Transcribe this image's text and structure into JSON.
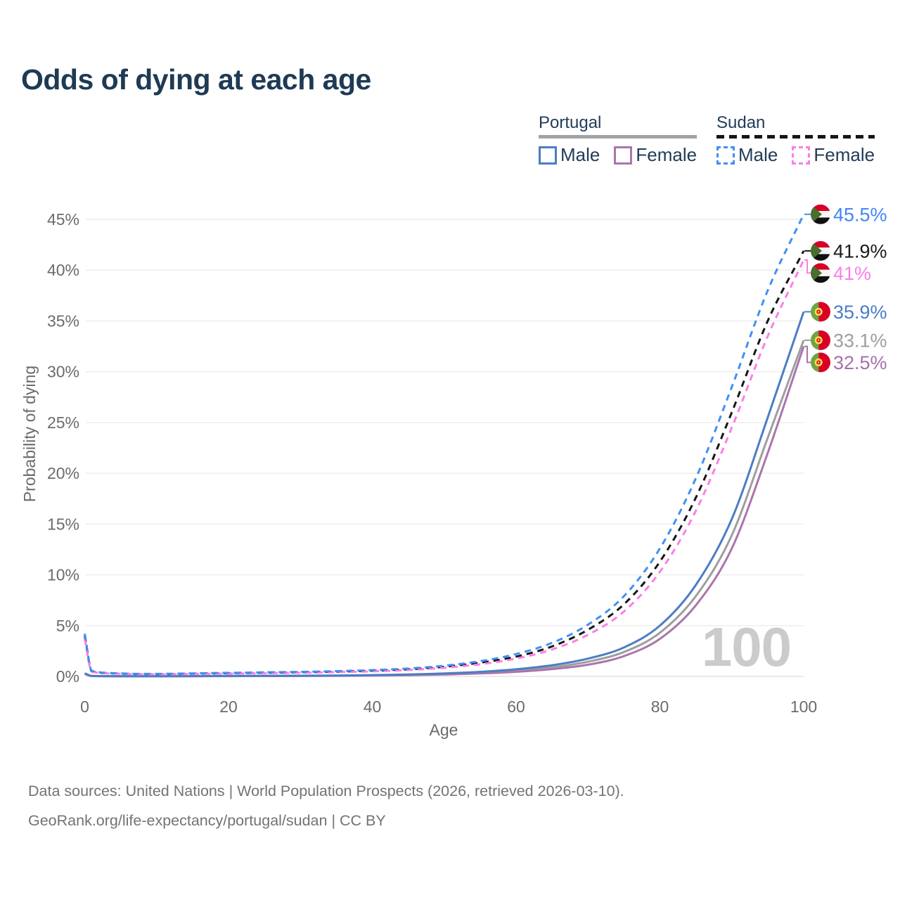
{
  "header": {
    "title": "Odds of dying at each age"
  },
  "legend": {
    "groups": [
      {
        "label": "Portugal",
        "line_style": "solid",
        "items": [
          {
            "label": "Male",
            "series": "portugal-male"
          },
          {
            "label": "Female",
            "series": "portugal-female"
          }
        ]
      },
      {
        "label": "Sudan",
        "line_style": "dashed",
        "items": [
          {
            "label": "Male",
            "series": "sudan-male"
          },
          {
            "label": "Female",
            "series": "sudan-female"
          }
        ]
      }
    ]
  },
  "footer": {
    "line1": "Data sources: United Nations | World Population Prospects (2026, retrieved 2026-03-10).",
    "line2": "GeoRank.org/life-expectancy/portugal/sudan | CC BY"
  },
  "chart_data": {
    "type": "line",
    "title": "Odds of dying at each age",
    "xlabel": "Age",
    "ylabel": "Probability of dying",
    "xlim": [
      0,
      100
    ],
    "ylim_percent": [
      0,
      47
    ],
    "grid": "horizontal",
    "x_ticks": [
      0,
      20,
      40,
      60,
      80,
      100
    ],
    "y_ticks": [
      "0%",
      "5%",
      "10%",
      "15%",
      "20%",
      "25%",
      "30%",
      "35%",
      "40%",
      "45%"
    ],
    "watermark": "100",
    "ages": [
      0,
      1,
      5,
      10,
      15,
      20,
      25,
      30,
      35,
      40,
      45,
      50,
      55,
      60,
      65,
      70,
      75,
      80,
      85,
      90,
      95,
      100
    ],
    "series": [
      {
        "id": "sudan-male",
        "country": "Sudan",
        "sex": "Male",
        "line_style": "dashed",
        "color": "#4190f2",
        "label_color": "#4285f4",
        "flag": "sudan",
        "end_label": "45.5%",
        "values_percent": [
          4.2,
          0.55,
          0.3,
          0.25,
          0.3,
          0.35,
          0.4,
          0.45,
          0.52,
          0.62,
          0.78,
          1.05,
          1.5,
          2.2,
          3.3,
          5.1,
          7.9,
          12.6,
          19.5,
          28.5,
          38.0,
          45.5
        ]
      },
      {
        "id": "sudan-total",
        "country": "Sudan",
        "sex": "Both",
        "line_style": "dashed",
        "color": "#161616",
        "label_color": "#1a1a1a",
        "flag": "sudan",
        "end_label": "41.9%",
        "values_percent": [
          4.0,
          0.5,
          0.28,
          0.23,
          0.27,
          0.32,
          0.36,
          0.41,
          0.47,
          0.56,
          0.7,
          0.95,
          1.35,
          1.95,
          2.95,
          4.6,
          7.1,
          11.3,
          17.6,
          26.0,
          35.0,
          41.9
        ]
      },
      {
        "id": "sudan-female",
        "country": "Sudan",
        "sex": "Female",
        "line_style": "dashed",
        "color": "#fb7ee8",
        "label_color": "#fb7ee8",
        "flag": "sudan",
        "end_label": "41%",
        "values_percent": [
          3.7,
          0.45,
          0.26,
          0.21,
          0.24,
          0.28,
          0.32,
          0.36,
          0.42,
          0.5,
          0.63,
          0.85,
          1.2,
          1.75,
          2.65,
          4.1,
          6.4,
          10.3,
          16.3,
          24.5,
          33.5,
          41.0
        ]
      },
      {
        "id": "portugal-male",
        "country": "Portugal",
        "sex": "Male",
        "line_style": "solid",
        "color": "#4d7dc3",
        "label_color": "#4a7cc7",
        "flag": "portugal",
        "end_label": "35.9%",
        "values_percent": [
          0.3,
          0.05,
          0.02,
          0.02,
          0.03,
          0.05,
          0.06,
          0.07,
          0.09,
          0.13,
          0.19,
          0.29,
          0.45,
          0.7,
          1.1,
          1.75,
          2.85,
          5.0,
          9.0,
          15.5,
          25.5,
          35.9
        ]
      },
      {
        "id": "portugal-total",
        "country": "Portugal",
        "sex": "Both",
        "line_style": "solid",
        "color": "#9e9e9e",
        "label_color": "#9e9e9e",
        "flag": "portugal",
        "end_label": "33.1%",
        "values_percent": [
          0.28,
          0.04,
          0.018,
          0.018,
          0.025,
          0.04,
          0.05,
          0.06,
          0.075,
          0.105,
          0.155,
          0.24,
          0.37,
          0.57,
          0.9,
          1.45,
          2.4,
          4.3,
          7.9,
          13.9,
          23.5,
          33.1
        ]
      },
      {
        "id": "portugal-female",
        "country": "Portugal",
        "sex": "Female",
        "line_style": "solid",
        "color": "#ac74ac",
        "label_color": "#a86fa8",
        "flag": "portugal",
        "end_label": "32.5%",
        "values_percent": [
          0.25,
          0.035,
          0.015,
          0.015,
          0.02,
          0.03,
          0.035,
          0.045,
          0.06,
          0.085,
          0.125,
          0.19,
          0.29,
          0.45,
          0.72,
          1.15,
          2.0,
          3.7,
          7.0,
          12.6,
          22.0,
          32.5
        ]
      }
    ],
    "flag_colors": {
      "sudan_red": "#d80027",
      "sudan_white": "#f5f5f5",
      "sudan_black": "#111111",
      "sudan_green": "#496e2d",
      "portugal_green": "#6da544",
      "portugal_red": "#d80027",
      "portugal_gold": "#ffda44"
    }
  }
}
